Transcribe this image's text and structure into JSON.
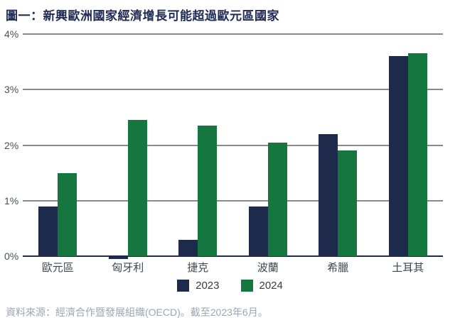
{
  "page": {
    "title": "圖一：新興歐洲國家經濟增長可能超過歐元區國家",
    "source_note": "資料來源：經濟合作暨發展組織(OECD)。截至2023年6月。"
  },
  "colors": {
    "title_navy": "#1F2B54",
    "bar_navy": "#1E2A4C",
    "bar_green": "#157640",
    "gridline_gray": "#8A8A8A",
    "axis_navy": "#1F2B4D",
    "tick_label_gray": "#4A5056",
    "category_label_gray": "#3F474E",
    "legend_text_gray": "#3A3A3A",
    "source_text_gray": "#9AA6B5"
  },
  "chart_data": {
    "type": "bar",
    "title": "圖一：新興歐洲國家經濟增長可能超過歐元區國家",
    "categories": [
      "歐元區",
      "匈牙利",
      "捷克",
      "波蘭",
      "希臘",
      "土耳其"
    ],
    "series": [
      {
        "name": "2023",
        "color": "#1E2A4C",
        "values": [
          0.9,
          -0.05,
          0.3,
          0.9,
          2.2,
          3.6
        ]
      },
      {
        "name": "2024",
        "color": "#157640",
        "values": [
          1.5,
          2.45,
          2.35,
          2.05,
          1.9,
          3.65
        ]
      }
    ],
    "xlabel": "",
    "ylabel": "",
    "ylim": [
      0,
      4
    ],
    "yticks": [
      {
        "value": 4,
        "label": "4%"
      },
      {
        "value": 3,
        "label": "3%"
      },
      {
        "value": 2,
        "label": "2%"
      },
      {
        "value": 1,
        "label": "1%"
      },
      {
        "value": 0,
        "label": "0%"
      }
    ],
    "grid": true,
    "legend_position": "bottom",
    "source": "資料來源：經濟合作暨發展組織(OECD)。截至2023年6月。"
  }
}
